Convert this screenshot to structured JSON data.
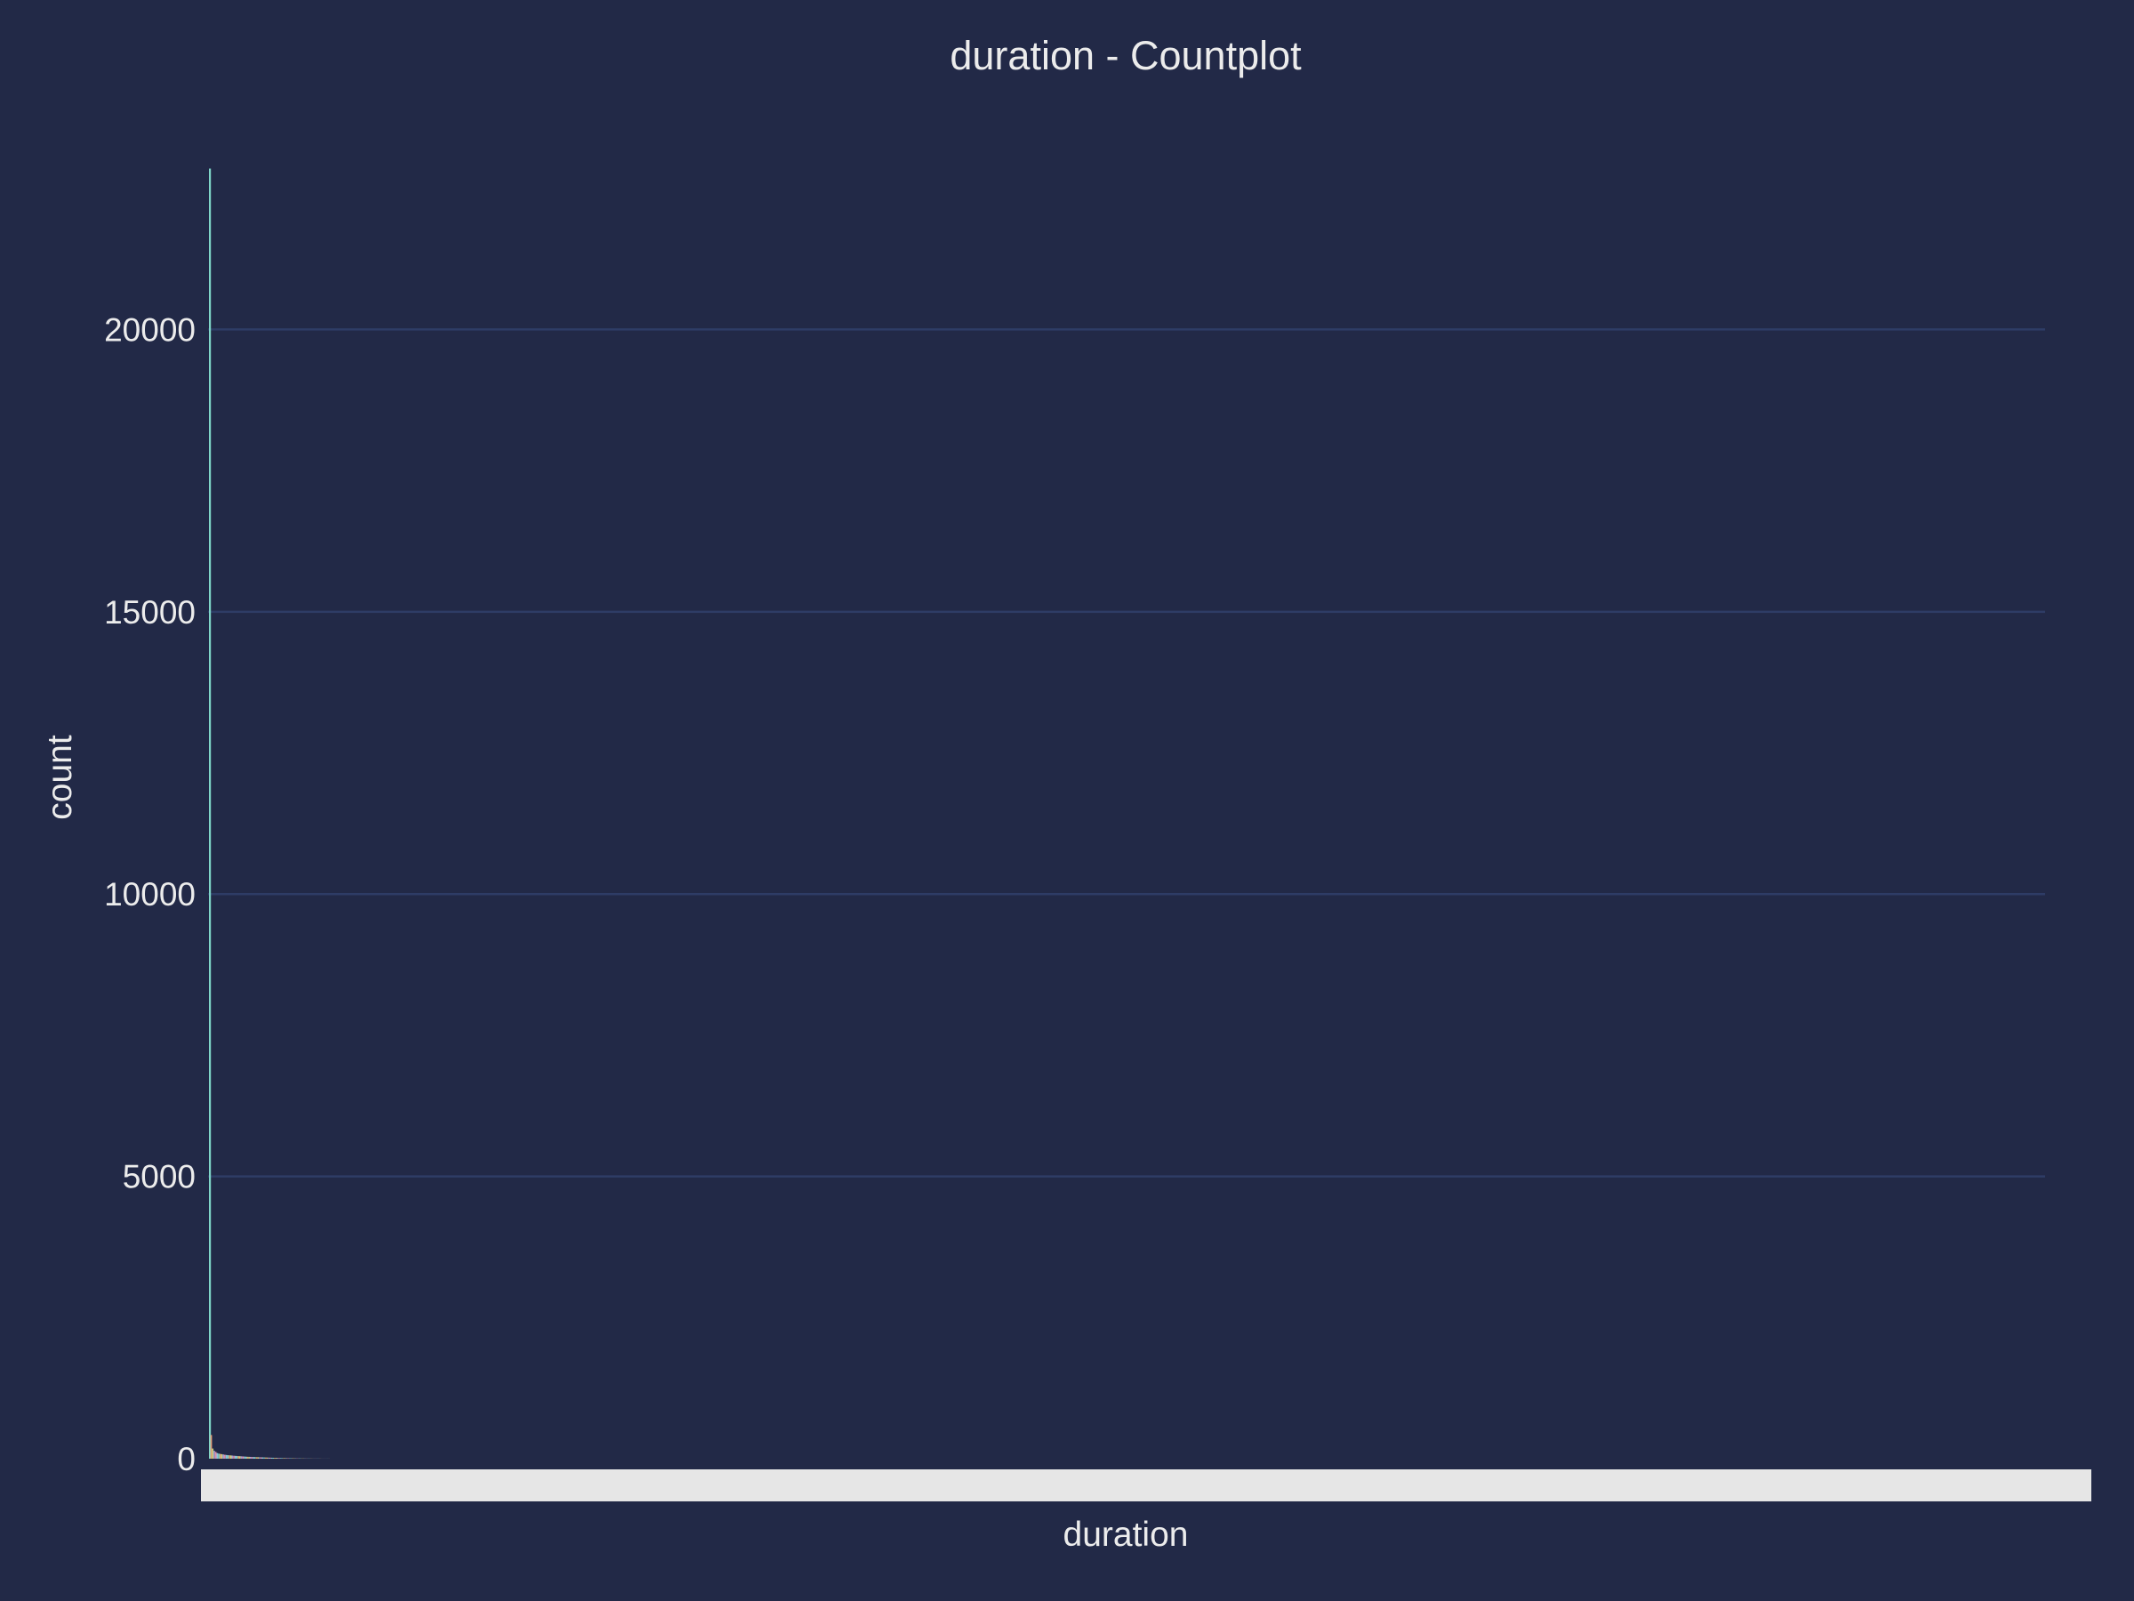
{
  "chart_data": {
    "type": "bar",
    "title": "duration - Countplot",
    "xlabel": "duration",
    "ylabel": "count",
    "ylim": [
      0,
      23000
    ],
    "yticks": [
      0,
      5000,
      10000,
      15000,
      20000
    ],
    "grid": true,
    "x_tick_labels_legible": false,
    "series": [
      {
        "values": [
          22850,
          420,
          180,
          140,
          120,
          100,
          90,
          85,
          80,
          75,
          70,
          66,
          62,
          60,
          58,
          55,
          52,
          50,
          48,
          46,
          44,
          42,
          40,
          38,
          36,
          34,
          33,
          32,
          30,
          29,
          28,
          27,
          26,
          25,
          24,
          23,
          22,
          21,
          20,
          19,
          18,
          17,
          16,
          15,
          14,
          13,
          12,
          11,
          10,
          10,
          9,
          9,
          8,
          8,
          7,
          7,
          6,
          6,
          5,
          5,
          5,
          4,
          4,
          4,
          3,
          3,
          3,
          3,
          2,
          2,
          2,
          2,
          2,
          2,
          1,
          1,
          1,
          1,
          1,
          1
        ]
      }
    ],
    "colors": [
      "#7fd6c8",
      "#e4a07a",
      "#c9d37f",
      "#a89fd6",
      "#e08fa6",
      "#8fc4e0"
    ]
  }
}
